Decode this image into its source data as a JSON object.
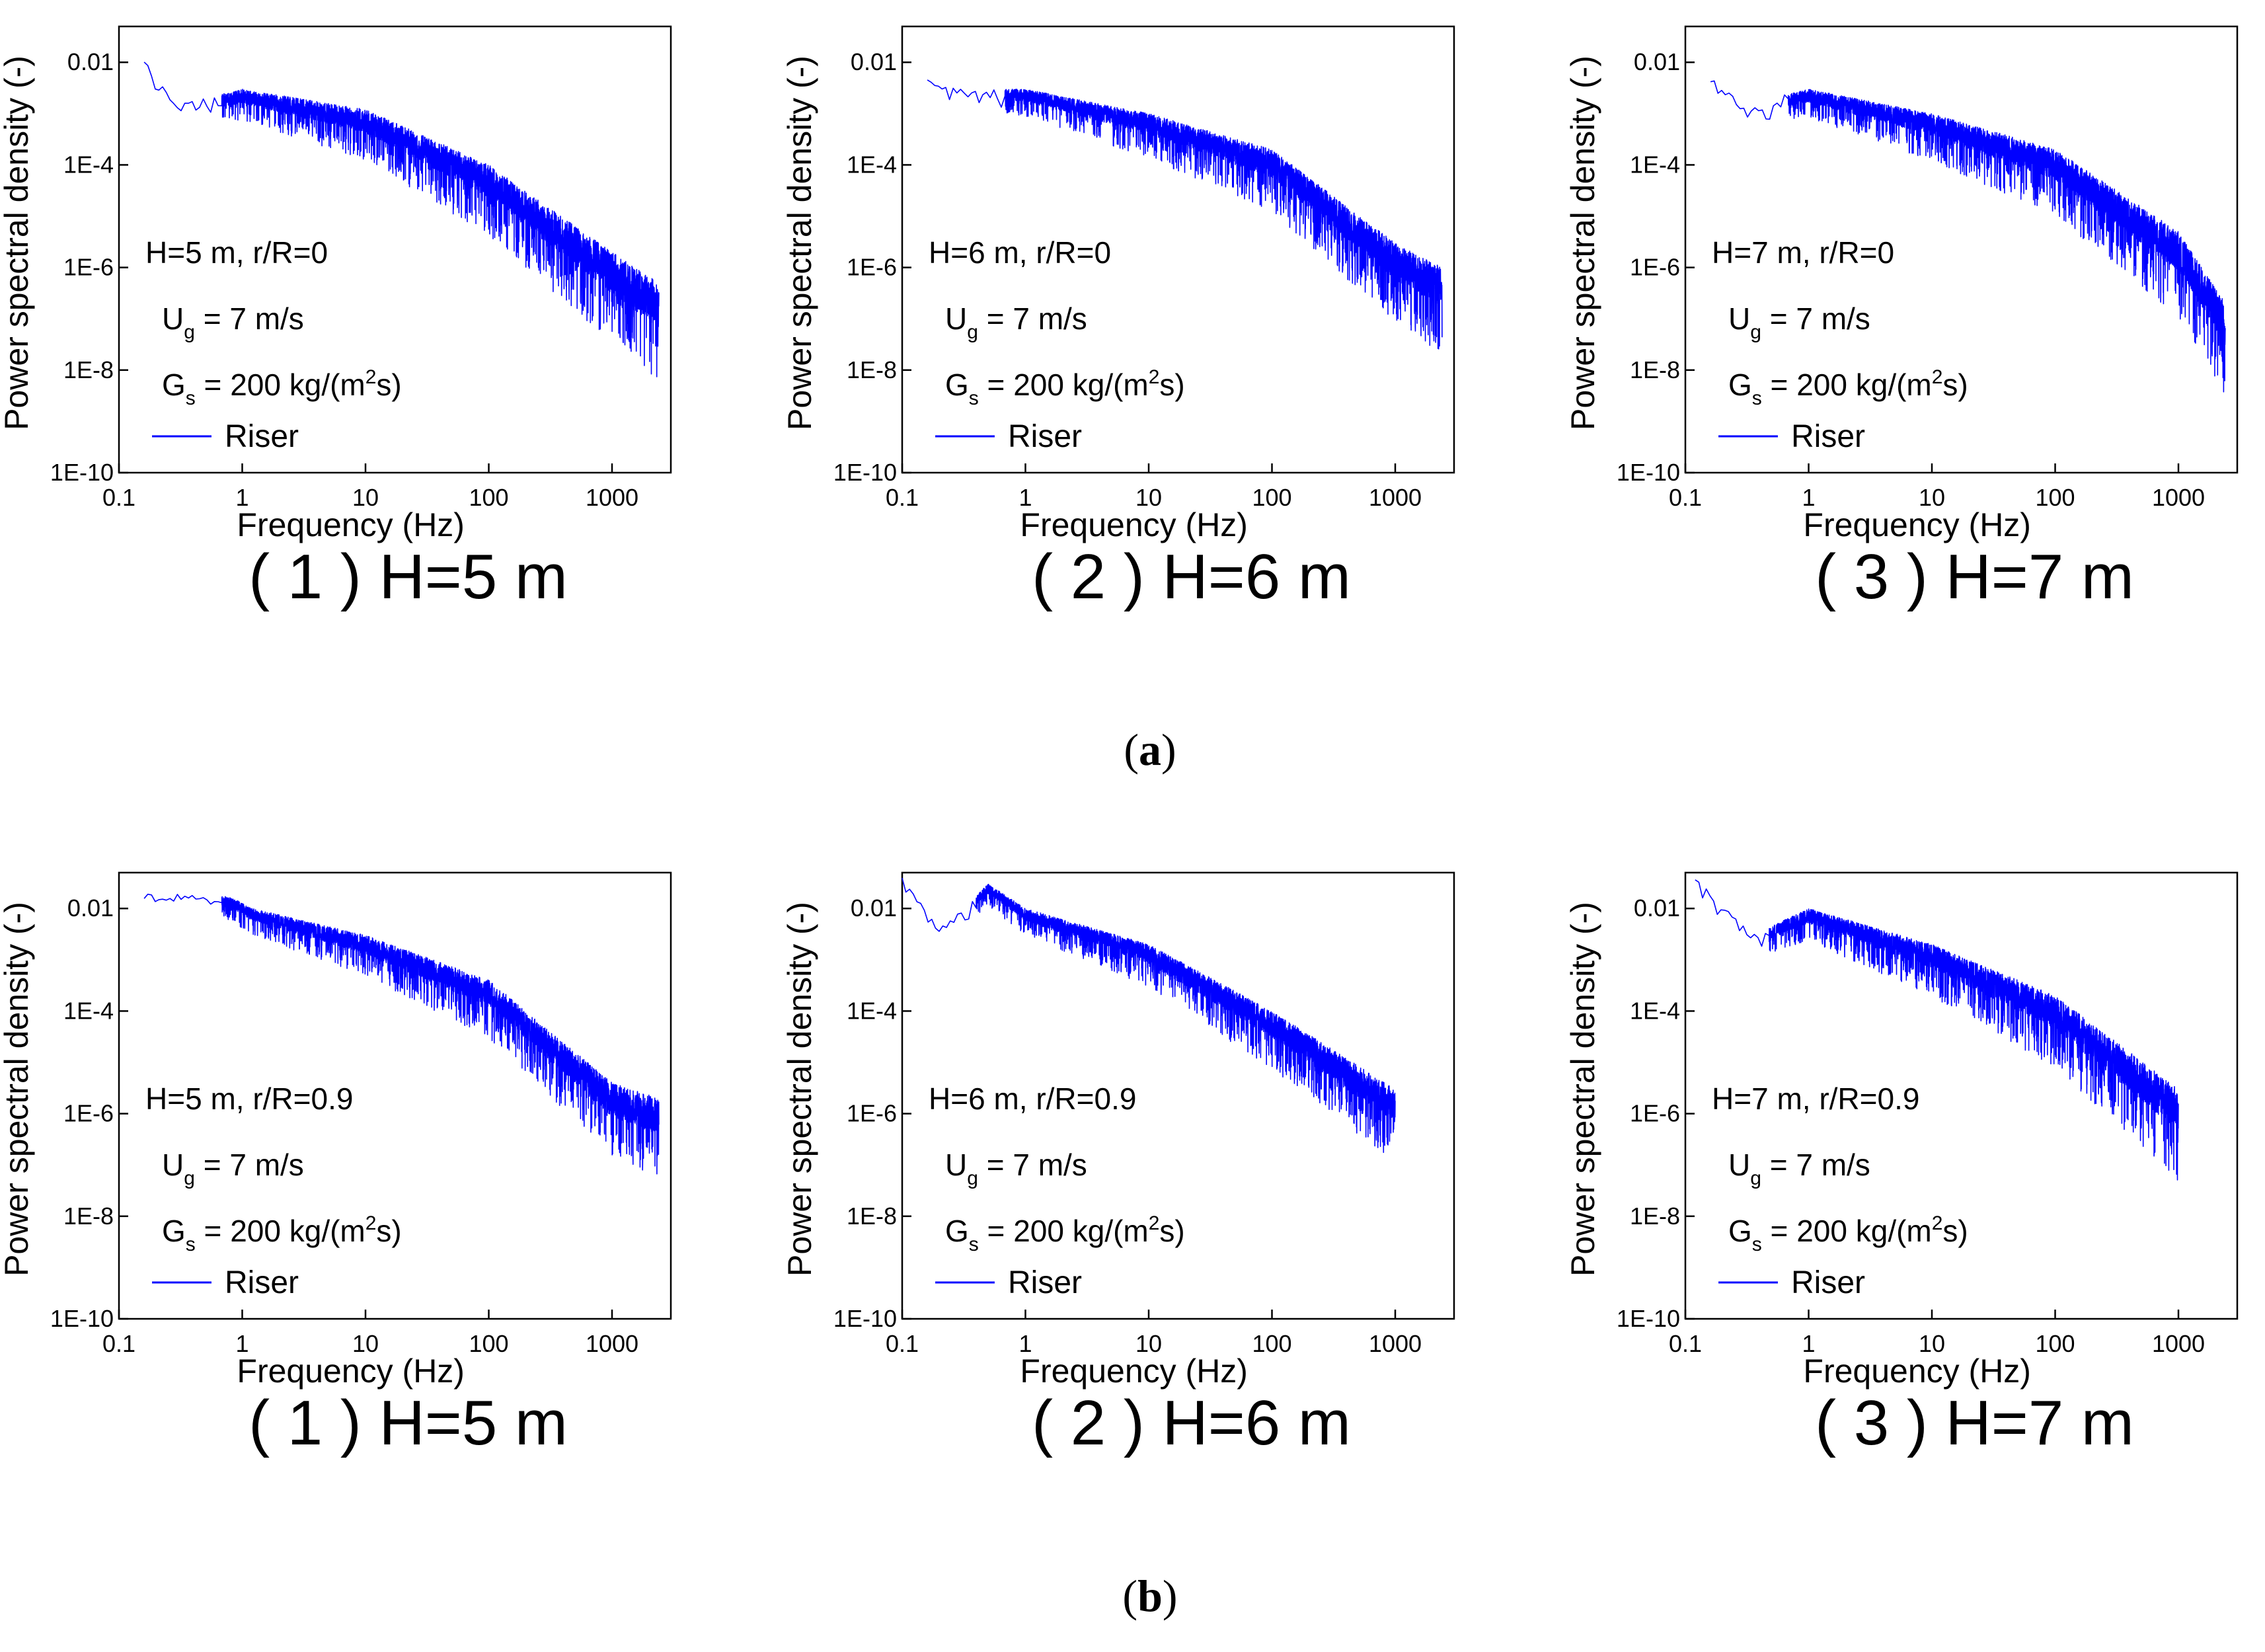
{
  "figure": {
    "row_labels": [
      {
        "open": "(",
        "letter": "a",
        "close": ")"
      },
      {
        "open": "(",
        "letter": "b",
        "close": ")"
      }
    ]
  },
  "chart_data": [
    {
      "type": "line",
      "row": "a",
      "caption": "( 1 ) H=5 m",
      "xlabel": "Frequency (Hz)",
      "ylabel": "Power spectral density (-)",
      "xscale": "log",
      "yscale": "log",
      "xlim": [
        0.1,
        3000
      ],
      "ylim": [
        1e-10,
        0.05
      ],
      "xticks": [
        "0.1",
        "1",
        "10",
        "100",
        "1000"
      ],
      "yticks": [
        "1E-10",
        "1E-8",
        "1E-6",
        "1E-4",
        "0.01"
      ],
      "annotations": [
        "H=5 m, r/R=0",
        "U",
        "g",
        " = 7 m/s",
        "G",
        "s",
        " = 200 kg/(m",
        "2",
        "s)"
      ],
      "legend": [
        "Riser"
      ],
      "series": [
        {
          "name": "Riser",
          "color": "#0000ff",
          "f_range": [
            0.16,
            2400
          ],
          "envelope": [
            [
              0.16,
              0.011
            ],
            [
              0.3,
              0.0015
            ],
            [
              1,
              0.003
            ],
            [
              10,
              0.0012
            ],
            [
              100,
              0.0001
            ],
            [
              1000,
              2e-06
            ],
            [
              2400,
              5e-07
            ]
          ],
          "spread_decades": 1.6,
          "seed": 11
        }
      ]
    },
    {
      "type": "line",
      "row": "a",
      "caption": "( 2 ) H=6 m",
      "xlabel": "Frequency (Hz)",
      "ylabel": "Power spectral density (-)",
      "xscale": "log",
      "yscale": "log",
      "xlim": [
        0.1,
        3000
      ],
      "ylim": [
        1e-10,
        0.05
      ],
      "xticks": [
        "0.1",
        "1",
        "10",
        "100",
        "1000"
      ],
      "yticks": [
        "1E-10",
        "1E-8",
        "1E-6",
        "1E-4",
        "0.01"
      ],
      "annotations": [
        "H=6 m, r/R=0",
        "U",
        "g",
        " = 7 m/s",
        "G",
        "s",
        " = 200 kg/(m",
        "2",
        "s)"
      ],
      "legend": [
        "Riser"
      ],
      "series": [
        {
          "name": "Riser",
          "color": "#0000ff",
          "f_range": [
            0.16,
            2400
          ],
          "envelope": [
            [
              0.16,
              0.005
            ],
            [
              0.3,
              0.003
            ],
            [
              1,
              0.003
            ],
            [
              10,
              0.001
            ],
            [
              100,
              0.0002
            ],
            [
              1000,
              3e-06
            ],
            [
              2400,
              1e-06
            ]
          ],
          "spread_decades": 1.4,
          "seed": 23
        }
      ]
    },
    {
      "type": "line",
      "row": "a",
      "caption": "( 3 ) H=7 m",
      "xlabel": "Frequency (Hz)",
      "ylabel": "Power spectral density (-)",
      "xscale": "log",
      "yscale": "log",
      "xlim": [
        0.1,
        3000
      ],
      "ylim": [
        1e-10,
        0.05
      ],
      "xticks": [
        "0.1",
        "1",
        "10",
        "100",
        "1000"
      ],
      "yticks": [
        "1E-10",
        "1E-8",
        "1E-6",
        "1E-4",
        "0.01"
      ],
      "annotations": [
        "H=7 m, r/R=0",
        "U",
        "g",
        " = 7 m/s",
        "G",
        "s",
        " = 200 kg/(m",
        "2",
        "s)"
      ],
      "legend": [
        "Riser"
      ],
      "series": [
        {
          "name": "Riser",
          "color": "#0000ff",
          "f_range": [
            0.16,
            2400
          ],
          "envelope": [
            [
              0.16,
              0.005
            ],
            [
              0.3,
              0.0015
            ],
            [
              1,
              0.003
            ],
            [
              10,
              0.001
            ],
            [
              100,
              0.0002
            ],
            [
              1000,
              5e-06
            ],
            [
              2400,
              2e-07
            ]
          ],
          "spread_decades": 1.5,
          "seed": 37
        }
      ]
    },
    {
      "type": "line",
      "row": "b",
      "caption": "( 1 ) H=5 m",
      "xlabel": "Frequency (Hz)",
      "ylabel": "Power spectral density (-)",
      "xscale": "log",
      "yscale": "log",
      "xlim": [
        0.1,
        3000
      ],
      "ylim": [
        1e-10,
        0.05
      ],
      "xticks": [
        "0.1",
        "1",
        "10",
        "100",
        "1000"
      ],
      "yticks": [
        "1E-10",
        "1E-8",
        "1E-6",
        "1E-4",
        "0.01"
      ],
      "annotations": [
        "H=5 m, r/R=0.9",
        "U",
        "g",
        " = 7 m/s",
        "G",
        "s",
        " = 200 kg/(m",
        "2",
        "s)"
      ],
      "legend": [
        "Riser"
      ],
      "series": [
        {
          "name": "Riser",
          "color": "#0000ff",
          "f_range": [
            0.16,
            2400
          ],
          "envelope": [
            [
              0.16,
              0.02
            ],
            [
              0.8,
              0.017
            ],
            [
              1.2,
              0.01
            ],
            [
              10,
              0.003
            ],
            [
              100,
              0.0004
            ],
            [
              1000,
              4e-06
            ],
            [
              2400,
              2e-06
            ]
          ],
          "spread_decades": 1.3,
          "seed": 41
        }
      ]
    },
    {
      "type": "line",
      "row": "b",
      "caption": "( 2 ) H=6 m",
      "xlabel": "Frequency (Hz)",
      "ylabel": "Power spectral density (-)",
      "xscale": "log",
      "yscale": "log",
      "xlim": [
        0.1,
        3000
      ],
      "ylim": [
        1e-10,
        0.05
      ],
      "xticks": [
        "0.1",
        "1",
        "10",
        "100",
        "1000"
      ],
      "yticks": [
        "1E-10",
        "1E-8",
        "1E-6",
        "1E-4",
        "0.01"
      ],
      "annotations": [
        "H=6 m, r/R=0.9",
        "U",
        "g",
        " = 7 m/s",
        "G",
        "s",
        " = 200 kg/(m",
        "2",
        "s)"
      ],
      "legend": [
        "Riser"
      ],
      "series": [
        {
          "name": "Riser",
          "color": "#0000ff",
          "f_range": [
            0.1,
            1000
          ],
          "envelope": [
            [
              0.1,
              0.04
            ],
            [
              0.2,
              0.004
            ],
            [
              0.5,
              0.03
            ],
            [
              1,
              0.01
            ],
            [
              10,
              0.002
            ],
            [
              100,
              0.0001
            ],
            [
              1000,
              3e-06
            ]
          ],
          "spread_decades": 1.2,
          "seed": 53
        }
      ]
    },
    {
      "type": "line",
      "row": "b",
      "caption": "( 3 ) H=7 m",
      "xlabel": "Frequency (Hz)",
      "ylabel": "Power spectral density (-)",
      "xscale": "log",
      "yscale": "log",
      "xlim": [
        0.1,
        3000
      ],
      "ylim": [
        1e-10,
        0.05
      ],
      "xticks": [
        "0.1",
        "1",
        "10",
        "100",
        "1000"
      ],
      "yticks": [
        "1E-10",
        "1E-8",
        "1E-6",
        "1E-4",
        "0.01"
      ],
      "annotations": [
        "H=7 m, r/R=0.9",
        "U",
        "g",
        " = 7 m/s",
        "G",
        "s",
        " = 200 kg/(m",
        "2",
        "s)"
      ],
      "legend": [
        "Riser"
      ],
      "series": [
        {
          "name": "Riser",
          "color": "#0000ff",
          "f_range": [
            0.12,
            1000
          ],
          "envelope": [
            [
              0.12,
              0.04
            ],
            [
              0.35,
              0.003
            ],
            [
              1,
              0.01
            ],
            [
              10,
              0.002
            ],
            [
              100,
              0.0002
            ],
            [
              1000,
              3e-06
            ]
          ],
          "spread_decades": 1.5,
          "seed": 67
        }
      ]
    }
  ]
}
